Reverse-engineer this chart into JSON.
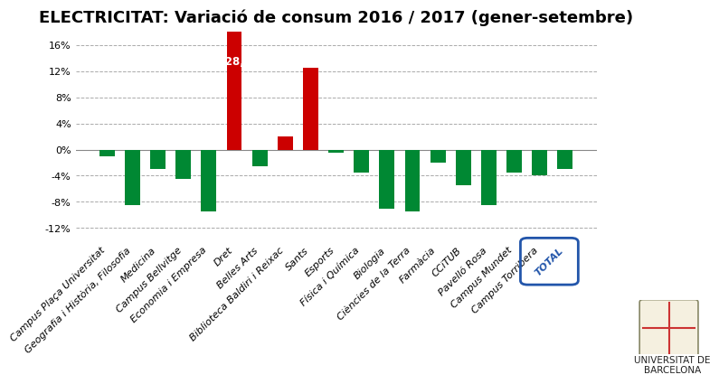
{
  "title": "ELECTRICITAT: Variació de consum 2016 / 2017 (gener-setembre)",
  "categories": [
    "Campus Plaça Universitat",
    "Geografia i Història, Filosofia",
    "Medicina",
    "Campus Bellvitge",
    "Economia i Empresa",
    "Dret",
    "Belles Arts",
    "Biblioteca Baldiri i Reixac",
    "Sants",
    "Esports",
    "Física i Química",
    "Biologia",
    "Ciències de la Terra",
    "Farmàcia",
    "CCiTUB",
    "Pavelló Rosa",
    "Campus Mundet",
    "Campus Torribera",
    "TOTAL"
  ],
  "values": [
    -1.0,
    -8.5,
    -3.0,
    -4.5,
    -9.5,
    28.2,
    -2.5,
    2.0,
    12.5,
    -0.5,
    -3.5,
    -9.0,
    -9.5,
    -2.0,
    -5.5,
    -8.5,
    -3.5,
    -4.0,
    -3.0
  ],
  "annotation_bar": "Dret",
  "annotation_text": "+28,2",
  "bar_color_positive": "#cc0000",
  "bar_color_negative": "#008833",
  "ylim": [
    -14,
    18
  ],
  "yticks": [
    -12,
    -8,
    -4,
    0,
    4,
    8,
    12,
    16
  ],
  "ytick_labels": [
    "-12%",
    "-8%",
    "-4%",
    "0%",
    "4%",
    "8%",
    "12%",
    "16%"
  ],
  "background_color": "#ffffff",
  "grid_color": "#aaaaaa",
  "title_fontsize": 13,
  "tick_fontsize": 8,
  "total_box_color": "#2255aa"
}
